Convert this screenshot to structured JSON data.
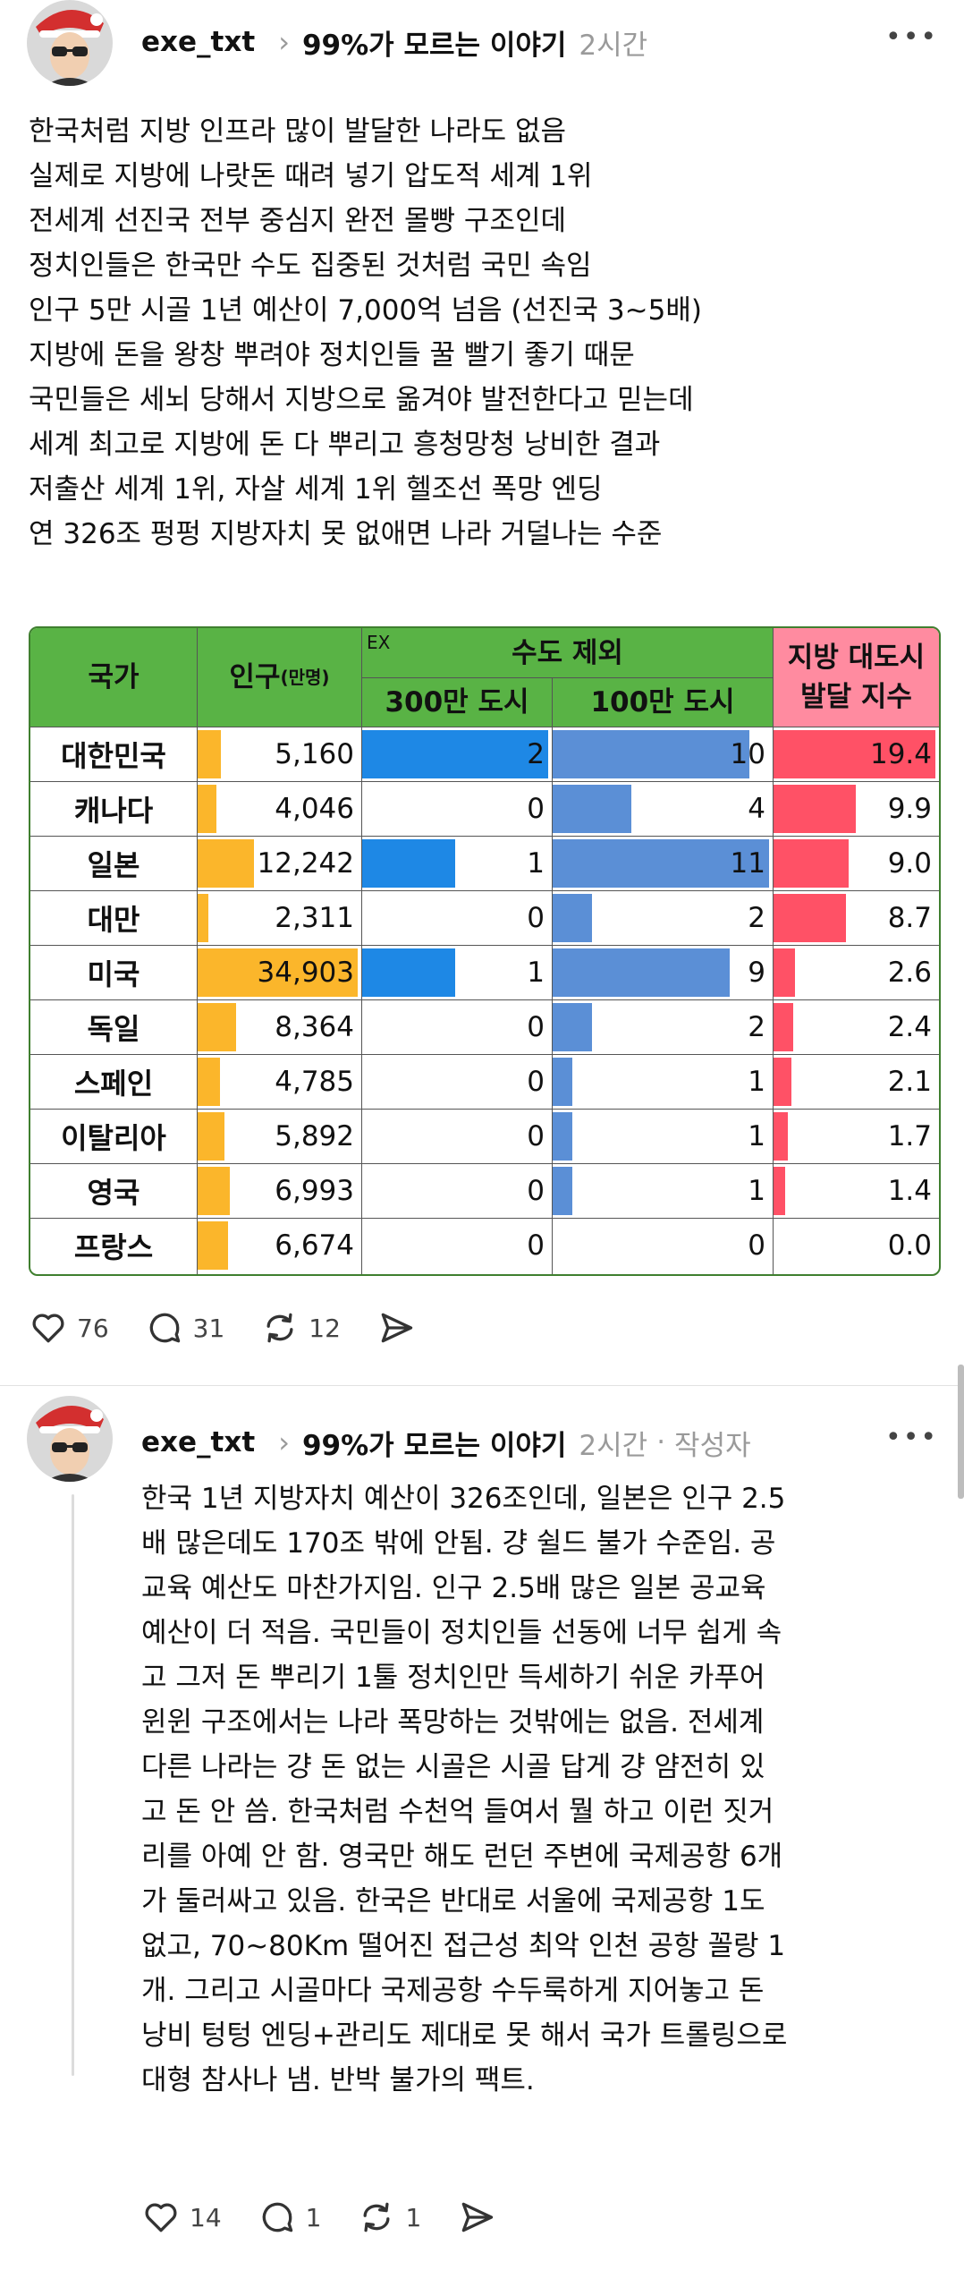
{
  "post": {
    "username": "exe_txt",
    "topic": "99%가 모르는 이야기",
    "time": "2시간",
    "lines": [
      "한국처럼 지방 인프라 많이 발달한 나라도 없음",
      "실제로 지방에 나랏돈 때려 넣기 압도적 세계 1위",
      "전세계 선진국 전부 중심지 완전 몰빵 구조인데",
      "정치인들은 한국만 수도 집중된 것처럼 국민 속임",
      "인구 5만 시골 1년 예산이 7,000억 넘음 (선진국 3~5배)",
      "지방에 돈을 왕창 뿌려야 정치인들 꿀 빨기 좋기 때문",
      "국민들은 세뇌 당해서 지방으로 옮겨야 발전한다고 믿는데",
      "세계 최고로 지방에 돈 다 뿌리고 흥청망청 낭비한 결과",
      "저출산 세계 1위, 자살 세계 1위 헬조선 폭망 엔딩",
      "연 326조 펑펑 지방자치 못 없애면 나라 거덜나는 수준"
    ],
    "likes": "76",
    "comments": "31",
    "reposts": "12"
  },
  "table": {
    "headers": {
      "country": "국가",
      "population": "인구",
      "population_unit": "(만명)",
      "ex": "EX",
      "capital_excluded": "수도 제외",
      "city300": "300만 도시",
      "city100": "100만 도시",
      "index_line1": "지방 대도시",
      "index_line2": "발달 지수"
    },
    "rows": [
      {
        "country": "대한민국",
        "population": "5,160",
        "city300": "2",
        "city100": "10",
        "index": "19.4"
      },
      {
        "country": "캐나다",
        "population": "4,046",
        "city300": "0",
        "city100": "4",
        "index": "9.9"
      },
      {
        "country": "일본",
        "population": "12,242",
        "city300": "1",
        "city100": "11",
        "index": "9.0"
      },
      {
        "country": "대만",
        "population": "2,311",
        "city300": "0",
        "city100": "2",
        "index": "8.7"
      },
      {
        "country": "미국",
        "population": "34,903",
        "city300": "1",
        "city100": "9",
        "index": "2.6"
      },
      {
        "country": "독일",
        "population": "8,364",
        "city300": "0",
        "city100": "2",
        "index": "2.4"
      },
      {
        "country": "스페인",
        "population": "4,785",
        "city300": "0",
        "city100": "1",
        "index": "2.1"
      },
      {
        "country": "이탈리아",
        "population": "5,892",
        "city300": "0",
        "city100": "1",
        "index": "1.7"
      },
      {
        "country": "영국",
        "population": "6,993",
        "city300": "0",
        "city100": "1",
        "index": "1.4"
      },
      {
        "country": "프랑스",
        "population": "6,674",
        "city300": "0",
        "city100": "0",
        "index": "0.0"
      }
    ],
    "colors": {
      "header_green": "#59b345",
      "header_pink": "#ff8ba0",
      "pop_bar": "#fbb62b",
      "city300_bar": "#1e88e5",
      "city100_bar": "#5b8fd6",
      "index_bar": "#ff5166"
    }
  },
  "reply": {
    "username": "exe_txt",
    "topic": "99%가 모르는 이야기",
    "time": "2시간",
    "separator": "·",
    "role": "작성자",
    "lines": [
      "한국 1년 지방자치 예산이 326조인데, 일본은 인구 2.5",
      "배 많은데도 170조 밖에 안됨. 걍 쉴드 불가 수준임. 공",
      "교육 예산도 마찬가지임. 인구 2.5배 많은 일본 공교육",
      "예산이 더 적음. 국민들이 정치인들 선동에 너무 쉽게 속",
      "고 그저 돈 뿌리기 1툴 정치인만 득세하기 쉬운 카푸어",
      "윈윈 구조에서는 나라 폭망하는 것밖에는 없음. 전세계",
      "다른 나라는 걍 돈 없는 시골은 시골 답게 걍 얌전히 있",
      "고 돈 안 씀. 한국처럼 수천억 들여서 뭘 하고 이런 짓거",
      "리를 아예 안 함. 영국만 해도 런던 주변에 국제공항 6개",
      "가 둘러싸고 있음. 한국은 반대로 서울에 국제공항 1도",
      "없고, 70~80Km 떨어진 접근성 최악 인천 공항 꼴랑 1",
      "개. 그리고 시골마다 국제공항 수두룩하게 지어놓고 돈",
      "낭비 텅텅 엔딩+관리도 제대로 못 해서 국가 트롤링으로",
      "대형 참사나 냄. 반박 불가의 팩트."
    ],
    "likes": "14",
    "comments": "1",
    "reposts": "1"
  },
  "icons": [
    "avatar",
    "chevron-right-icon",
    "more-icon",
    "heart-icon",
    "comment-icon",
    "repost-icon",
    "share-icon"
  ]
}
